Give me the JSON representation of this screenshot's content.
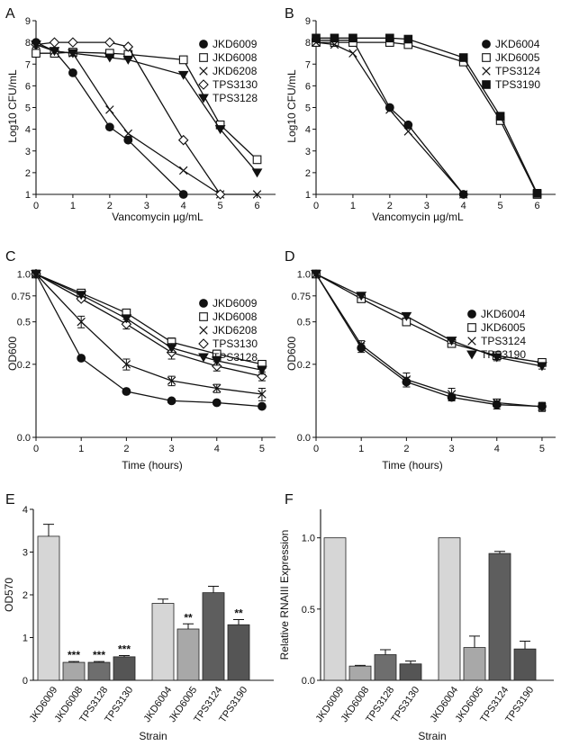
{
  "panel_labels": [
    "A",
    "B",
    "C",
    "D",
    "E",
    "F"
  ],
  "chart_data": [
    {
      "type": "line",
      "panel": "A",
      "xlabel": "Vancomycin µg/mL",
      "ylabel": "Log10 CFU/mL",
      "xlim": [
        0,
        6.5
      ],
      "ylim": [
        1,
        9
      ],
      "xticks": [
        "0",
        "1",
        "2",
        "3",
        "4",
        "5",
        "6"
      ],
      "yticks": [
        "1",
        "2",
        "3",
        "4",
        "5",
        "6",
        "7",
        "8",
        "9"
      ],
      "series": [
        {
          "name": "JKD6009",
          "marker": "circle-filled",
          "x": [
            0,
            0.5,
            1,
            2,
            2.5,
            4
          ],
          "y": [
            8.0,
            7.6,
            6.6,
            4.1,
            3.5,
            1.0
          ]
        },
        {
          "name": "JKD6008",
          "marker": "square-open",
          "x": [
            0,
            0.5,
            1,
            2,
            2.5,
            4,
            5,
            6
          ],
          "y": [
            7.5,
            7.5,
            7.55,
            7.5,
            7.45,
            7.2,
            4.2,
            2.6
          ]
        },
        {
          "name": "JKD6208",
          "marker": "x",
          "x": [
            0,
            0.5,
            1,
            2,
            2.5,
            4,
            5,
            6
          ],
          "y": [
            7.9,
            7.6,
            7.5,
            4.9,
            3.8,
            2.1,
            1.0,
            1.0
          ]
        },
        {
          "name": "TPS3130",
          "marker": "diamond-open",
          "x": [
            0,
            0.5,
            1,
            2,
            2.5,
            4,
            5
          ],
          "y": [
            7.9,
            8.0,
            8.0,
            8.0,
            7.8,
            3.5,
            1.0
          ]
        },
        {
          "name": "TPS3128",
          "marker": "triangle-down-filled",
          "x": [
            0,
            0.5,
            1,
            2,
            2.5,
            4,
            5,
            6
          ],
          "y": [
            7.9,
            7.6,
            7.5,
            7.3,
            7.2,
            6.5,
            4.0,
            2.0
          ]
        }
      ]
    },
    {
      "type": "line",
      "panel": "B",
      "xlabel": "Vancomycin µg/mL",
      "ylabel": "Log10 CFU/mL",
      "xlim": [
        0,
        6.5
      ],
      "ylim": [
        1,
        9
      ],
      "xticks": [
        "0",
        "1",
        "2",
        "3",
        "4",
        "5",
        "6"
      ],
      "yticks": [
        "1",
        "2",
        "3",
        "4",
        "5",
        "6",
        "7",
        "8",
        "9"
      ],
      "series": [
        {
          "name": "JKD6004",
          "marker": "circle-filled",
          "x": [
            0,
            0.5,
            1,
            2,
            2.5,
            4
          ],
          "y": [
            8.1,
            8.1,
            8.1,
            5.0,
            4.2,
            1.0
          ]
        },
        {
          "name": "JKD6005",
          "marker": "square-open",
          "x": [
            0,
            0.5,
            1,
            2,
            2.5,
            4,
            5,
            6
          ],
          "y": [
            8.0,
            8.0,
            8.0,
            8.0,
            7.9,
            7.1,
            4.4,
            1.0
          ]
        },
        {
          "name": "TPS3124",
          "marker": "x",
          "x": [
            0,
            0.5,
            1,
            2,
            2.5,
            4
          ],
          "y": [
            8.0,
            7.9,
            7.5,
            4.9,
            3.9,
            1.0
          ]
        },
        {
          "name": "TPS3190",
          "marker": "square-filled",
          "x": [
            0,
            0.5,
            1,
            2,
            2.5,
            4,
            5,
            6
          ],
          "y": [
            8.2,
            8.2,
            8.2,
            8.2,
            8.15,
            7.3,
            4.6,
            1.05
          ]
        }
      ]
    },
    {
      "type": "line",
      "panel": "C",
      "xlabel": "Time (hours)",
      "ylabel": "OD600",
      "xlim": [
        0,
        5.3
      ],
      "ylim": [
        0,
        1.05
      ],
      "yscale": "sqrt",
      "xticks": [
        "0",
        "1",
        "2",
        "3",
        "4",
        "5"
      ],
      "yticks": [
        "0.0",
        "0.2",
        "0.5",
        "0.75",
        "1.0"
      ],
      "yticks_values": [
        0,
        0.2,
        0.5,
        0.75,
        1.0
      ],
      "series": [
        {
          "name": "JKD6009",
          "marker": "circle-filled",
          "x": [
            0,
            1,
            2,
            3,
            4,
            5
          ],
          "y": [
            1.0,
            0.235,
            0.079,
            0.05,
            0.045,
            0.036
          ],
          "err": [
            0,
            0,
            0,
            0,
            0,
            0
          ]
        },
        {
          "name": "JKD6008",
          "marker": "square-open",
          "x": [
            0,
            1,
            2,
            3,
            4,
            5
          ],
          "y": [
            1.0,
            0.78,
            0.58,
            0.34,
            0.26,
            0.2
          ],
          "err": [
            0,
            0.02,
            0.03,
            0.03,
            0.025,
            0.02
          ]
        },
        {
          "name": "JKD6208",
          "marker": "x",
          "x": [
            0,
            1,
            2,
            3,
            4,
            5
          ],
          "y": [
            1.0,
            0.5,
            0.2,
            0.12,
            0.09,
            0.07
          ],
          "err": [
            0,
            0.05,
            0.03,
            0.02,
            0.015,
            0.02
          ]
        },
        {
          "name": "TPS3130",
          "marker": "diamond-open",
          "x": [
            0,
            1,
            2,
            3,
            4,
            5
          ],
          "y": [
            1.0,
            0.72,
            0.48,
            0.27,
            0.19,
            0.14
          ],
          "err": [
            0,
            0.02,
            0.04,
            0.04,
            0.025,
            0.02
          ]
        },
        {
          "name": "TPS3128",
          "marker": "triangle-down-filled",
          "x": [
            0,
            1,
            2,
            3,
            4,
            5
          ],
          "y": [
            1.0,
            0.76,
            0.53,
            0.3,
            0.22,
            0.17
          ],
          "err": [
            0,
            0.02,
            0.03,
            0.03,
            0.025,
            0.02
          ]
        }
      ]
    },
    {
      "type": "line",
      "panel": "D",
      "xlabel": "Time (hours)",
      "ylabel": "OD600",
      "xlim": [
        0,
        5.3
      ],
      "ylim": [
        0,
        1.05
      ],
      "yscale": "sqrt",
      "xticks": [
        "0",
        "1",
        "2",
        "3",
        "4",
        "5"
      ],
      "yticks": [
        "0.0",
        "0.2",
        "0.5",
        "0.75",
        "1.0"
      ],
      "yticks_values": [
        0,
        0.2,
        0.5,
        0.75,
        1.0
      ],
      "series": [
        {
          "name": "JKD6004",
          "marker": "circle-filled",
          "x": [
            0,
            1,
            2,
            3,
            4,
            5
          ],
          "y": [
            1.0,
            0.3,
            0.115,
            0.06,
            0.04,
            0.036
          ],
          "err": [
            0,
            0.03,
            0.02,
            0.01,
            0.01,
            0.01
          ]
        },
        {
          "name": "JKD6005",
          "marker": "square-open",
          "x": [
            0,
            1,
            2,
            3,
            4,
            5
          ],
          "y": [
            1.0,
            0.72,
            0.5,
            0.33,
            0.25,
            0.21
          ],
          "err": [
            0,
            0.03,
            0.02,
            0.02,
            0.015,
            0.01
          ]
        },
        {
          "name": "TPS3124",
          "marker": "x",
          "x": [
            0,
            1,
            2,
            3,
            4,
            5
          ],
          "y": [
            1.0,
            0.32,
            0.125,
            0.07,
            0.045,
            0.035
          ],
          "err": [
            0,
            0.03,
            0.03,
            0.02,
            0.01,
            0.01
          ]
        },
        {
          "name": "TPS3190",
          "marker": "triangle-down-filled",
          "x": [
            0,
            1,
            2,
            3,
            4,
            5
          ],
          "y": [
            1.0,
            0.75,
            0.55,
            0.35,
            0.24,
            0.19
          ],
          "err": [
            0,
            0.02,
            0.02,
            0.02,
            0.02,
            0.015
          ]
        }
      ]
    },
    {
      "type": "bar",
      "panel": "E",
      "xlabel": "Strain",
      "ylabel": "OD570",
      "ylim": [
        0,
        4
      ],
      "yticks": [
        "0",
        "1",
        "2",
        "3",
        "4"
      ],
      "categories": [
        "JKD6009",
        "JKD6008",
        "TPS3128",
        "TPS3130",
        "JKD6004",
        "JKD6005",
        "TPS3124",
        "TPS3190"
      ],
      "values": [
        3.37,
        0.42,
        0.42,
        0.55,
        1.8,
        1.2,
        2.05,
        1.3
      ],
      "errors": [
        0.28,
        0.02,
        0.02,
        0.03,
        0.1,
        0.12,
        0.15,
        0.12
      ],
      "significance": [
        "",
        "***",
        "***",
        "***",
        "",
        "**",
        "",
        "**"
      ],
      "colors": [
        "#d6d6d6",
        "#a8a8a8",
        "#6e6e6e",
        "#555555",
        "#d6d6d6",
        "#a8a8a8",
        "#5e5e5e",
        "#555555"
      ]
    },
    {
      "type": "bar",
      "panel": "F",
      "xlabel": "Strain",
      "ylabel": "Relative RNAIII Expression",
      "ylim": [
        0,
        1.2
      ],
      "yticks": [
        "0.0",
        "0.5",
        "1.0"
      ],
      "categories": [
        "JKD6009",
        "JKD6008",
        "TPS3128",
        "TPS3130",
        "JKD6004",
        "JKD6005",
        "TPS3124",
        "TPS3190"
      ],
      "values": [
        1.0,
        0.1,
        0.18,
        0.115,
        1.0,
        0.23,
        0.89,
        0.22
      ],
      "errors": [
        0,
        0.005,
        0.035,
        0.02,
        0,
        0.08,
        0.015,
        0.055
      ],
      "significance": [
        "",
        "",
        "",
        "",
        "",
        "",
        "",
        ""
      ],
      "colors": [
        "#d6d6d6",
        "#a8a8a8",
        "#6e6e6e",
        "#555555",
        "#d6d6d6",
        "#a8a8a8",
        "#5e5e5e",
        "#555555"
      ]
    }
  ]
}
